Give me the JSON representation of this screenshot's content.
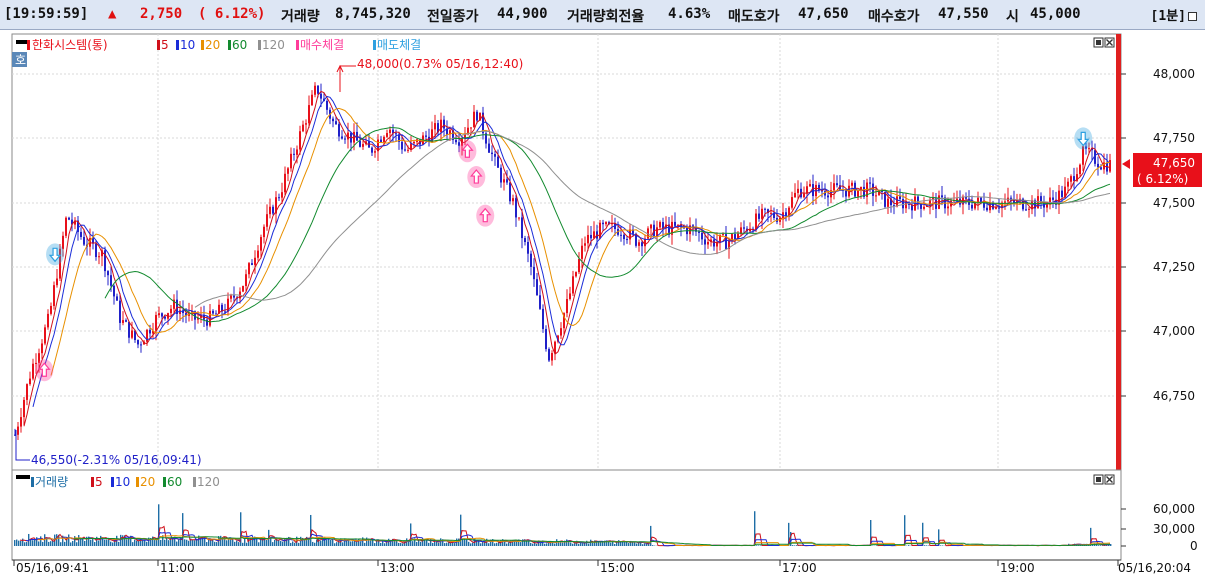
{
  "top_bar": {
    "time": "[19:59:59]",
    "change_arrow": "▲",
    "change": "2,750",
    "change_pct": "( 6.12%)",
    "volume_label": "거래량",
    "volume": "8,745,320",
    "prev_volume_label": "전일종가",
    "prev_volume": "44,900",
    "turnover_label": "거래량회전율",
    "turnover": "4.63%",
    "ask_label": "매도호가",
    "ask": "47,650",
    "bid_label": "매수호가",
    "bid": "47,550",
    "open_label": "시",
    "open": "45,000",
    "period": "[1분]"
  },
  "price_panel": {
    "stock_name": "한화시스템(통)",
    "ma_labels": [
      "5",
      "10",
      "20",
      "60",
      "120"
    ],
    "buy_fill_label": "매수체결",
    "sell_fill_label": "매도체결",
    "quote_badge": "호",
    "high_annotation": "48,000(0.73% 05/16,12:40)",
    "low_annotation": "46,550(-2.31% 05/16,09:41)",
    "current_price": "47,650",
    "current_pct": "( 6.12%)",
    "y_ticks": [
      "48,000",
      "47,750",
      "47,500",
      "47,250",
      "47,000",
      "46,750"
    ]
  },
  "volume_panel": {
    "label": "거래량",
    "ma_labels": [
      "5",
      "10",
      "20",
      "60",
      "120"
    ],
    "y_ticks": [
      "60,000",
      "30,000",
      "0"
    ]
  },
  "x_axis": {
    "labels": [
      "05/16,09:41",
      "11:00",
      "13:00",
      "15:00",
      "17:00",
      "19:00",
      "05/16,20:04"
    ]
  },
  "colors": {
    "up": "#e8101a",
    "down": "#2020c8",
    "ma5": "#d0101a",
    "ma10": "#1a2cd8",
    "ma20": "#e89000",
    "ma60": "#128a2e",
    "ma120": "#909090",
    "buy_fill": "#ff3c9a",
    "sell_fill": "#2ea0e0",
    "volume_bar": "#1e6ea6",
    "price_tag": "#e8101a"
  },
  "chart_data": {
    "type": "candlestick",
    "price_range": [
      46550,
      48000
    ],
    "y_axis_ticks": [
      48000,
      47750,
      47500,
      47250,
      47000,
      46750
    ],
    "x_time_labels": [
      "05/16,09:41",
      "11:00",
      "13:00",
      "15:00",
      "17:00",
      "19:00",
      "05/16,20:04"
    ],
    "price_path": [
      [
        "09:41",
        46600
      ],
      [
        "09:50",
        46850
      ],
      [
        "10:00",
        47050
      ],
      [
        "10:10",
        47450
      ],
      [
        "10:20",
        47350
      ],
      [
        "10:30",
        47300
      ],
      [
        "10:40",
        47050
      ],
      [
        "10:50",
        46950
      ],
      [
        "11:00",
        47050
      ],
      [
        "11:10",
        47100
      ],
      [
        "11:20",
        47050
      ],
      [
        "11:30",
        47050
      ],
      [
        "11:40",
        47100
      ],
      [
        "11:50",
        47200
      ],
      [
        "12:00",
        47400
      ],
      [
        "12:10",
        47550
      ],
      [
        "12:20",
        47750
      ],
      [
        "12:30",
        47950
      ],
      [
        "12:40",
        47800
      ],
      [
        "12:50",
        47750
      ],
      [
        "13:00",
        47700
      ],
      [
        "13:10",
        47800
      ],
      [
        "13:20",
        47700
      ],
      [
        "13:30",
        47750
      ],
      [
        "13:40",
        47800
      ],
      [
        "13:50",
        47750
      ],
      [
        "14:00",
        47850
      ],
      [
        "14:10",
        47650
      ],
      [
        "14:20",
        47500
      ],
      [
        "14:30",
        47250
      ],
      [
        "14:40",
        46900
      ],
      [
        "14:50",
        47100
      ],
      [
        "15:00",
        47350
      ],
      [
        "15:10",
        47400
      ],
      [
        "15:20",
        47400
      ],
      [
        "15:30",
        47350
      ],
      [
        "15:40",
        47400
      ],
      [
        "15:50",
        47400
      ],
      [
        "16:00",
        47400
      ],
      [
        "16:10",
        47350
      ],
      [
        "16:20",
        47350
      ],
      [
        "16:30",
        47400
      ],
      [
        "16:40",
        47450
      ],
      [
        "16:50",
        47450
      ],
      [
        "17:00",
        47550
      ],
      [
        "17:10",
        47550
      ],
      [
        "17:20",
        47550
      ],
      [
        "17:30",
        47550
      ],
      [
        "17:40",
        47550
      ],
      [
        "17:50",
        47500
      ],
      [
        "18:00",
        47500
      ],
      [
        "18:10",
        47500
      ],
      [
        "18:20",
        47500
      ],
      [
        "18:30",
        47500
      ],
      [
        "18:40",
        47500
      ],
      [
        "18:50",
        47500
      ],
      [
        "19:00",
        47500
      ],
      [
        "19:10",
        47500
      ],
      [
        "19:20",
        47500
      ],
      [
        "19:30",
        47550
      ],
      [
        "19:40",
        47700
      ],
      [
        "19:50",
        47650
      ]
    ],
    "buy_fill_markers": [
      [
        "09:58",
        46850
      ],
      [
        "13:55",
        47700
      ],
      [
        "14:00",
        47600
      ],
      [
        "14:05",
        47450
      ]
    ],
    "sell_fill_markers": [
      [
        "10:04",
        47300
      ],
      [
        "19:40",
        47750
      ]
    ]
  }
}
